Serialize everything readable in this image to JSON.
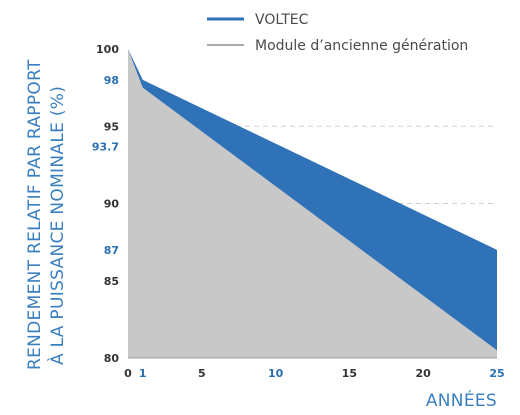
{
  "chart_data": {
    "type": "area",
    "xlabel": "ANNÉES",
    "ylabel_line1": "RENDEMENT RELATIF PAR RAPPORT",
    "ylabel_line2": "À LA PUISSANCE NOMINALE (%)",
    "xlim": [
      0,
      25
    ],
    "ylim": [
      80,
      100
    ],
    "grid": true,
    "legend_position": "top-right",
    "x_ticks": [
      {
        "value": 0,
        "label": "0",
        "highlight": false
      },
      {
        "value": 1,
        "label": "1",
        "highlight": true
      },
      {
        "value": 5,
        "label": "5",
        "highlight": false
      },
      {
        "value": 10,
        "label": "10",
        "highlight": true
      },
      {
        "value": 15,
        "label": "15",
        "highlight": false
      },
      {
        "value": 20,
        "label": "20",
        "highlight": false
      },
      {
        "value": 25,
        "label": "25",
        "highlight": true
      }
    ],
    "y_ticks": [
      {
        "value": 100,
        "label": "100",
        "highlight": false,
        "grid": false
      },
      {
        "value": 98,
        "label": "98",
        "highlight": true,
        "grid": false
      },
      {
        "value": 95,
        "label": "95",
        "highlight": false,
        "grid": true
      },
      {
        "value": 93.7,
        "label": "93.7",
        "highlight": true,
        "grid": false
      },
      {
        "value": 90,
        "label": "90",
        "highlight": false,
        "grid": true
      },
      {
        "value": 87,
        "label": "87",
        "highlight": true,
        "grid": true
      },
      {
        "value": 85,
        "label": "85",
        "highlight": false,
        "grid": true
      },
      {
        "value": 80,
        "label": "80",
        "highlight": false,
        "grid": false
      }
    ],
    "series": [
      {
        "name": "VOLTEC",
        "color": "#2f72b8",
        "x": [
          0,
          1,
          25
        ],
        "values": [
          100,
          98,
          87
        ]
      },
      {
        "name": "Module d’ancienne génération",
        "color": "#c8c8c8",
        "x": [
          0,
          1,
          25
        ],
        "values": [
          100,
          97.5,
          80.5
        ]
      }
    ]
  }
}
